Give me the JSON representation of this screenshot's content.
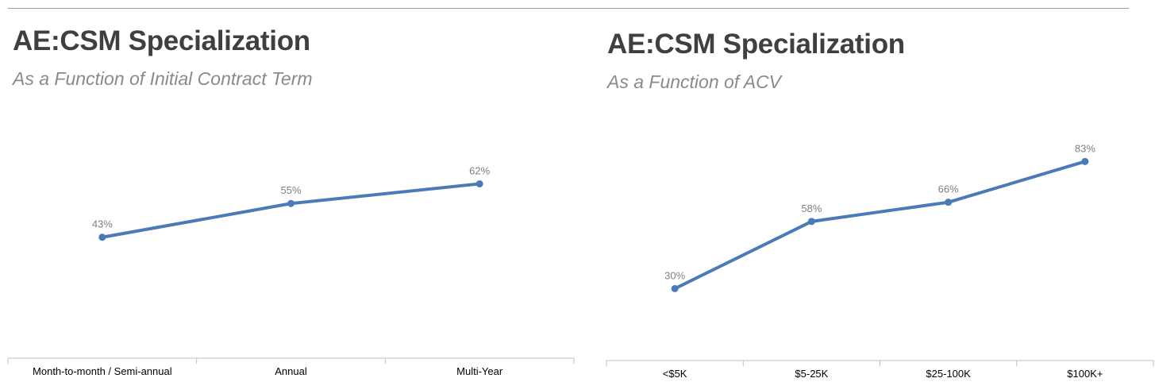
{
  "charts": [
    {
      "id": "term",
      "title": "AE:CSM Specialization",
      "subtitle": "As a Function of Initial Contract Term",
      "line_color": "#4a7ab8"
    },
    {
      "id": "acv",
      "title": "AE:CSM Specialization",
      "subtitle": "As a Function of ACV",
      "line_color": "#4a7ab8"
    }
  ],
  "chart_data": [
    {
      "type": "line",
      "title": "AE:CSM Specialization",
      "subtitle": "As a Function of Initial Contract Term",
      "categories": [
        "Month-to-month / Semi-annual",
        "Annual",
        "Multi-Year"
      ],
      "values": [
        43,
        55,
        62
      ],
      "data_labels": [
        "43%",
        "55%",
        "62%"
      ],
      "xlabel": "",
      "ylabel": "",
      "ylim": [
        0,
        85
      ],
      "grid": false,
      "legend": "none"
    },
    {
      "type": "line",
      "title": "AE:CSM Specialization",
      "subtitle": "As a Function of ACV",
      "categories": [
        "<$5K",
        "$5-25K",
        "$25-100K",
        "$100K+"
      ],
      "values": [
        30,
        58,
        66,
        83
      ],
      "data_labels": [
        "30%",
        "58%",
        "66%",
        "83%"
      ],
      "xlabel": "",
      "ylabel": "",
      "ylim": [
        0,
        100
      ],
      "grid": false,
      "legend": "none"
    }
  ]
}
